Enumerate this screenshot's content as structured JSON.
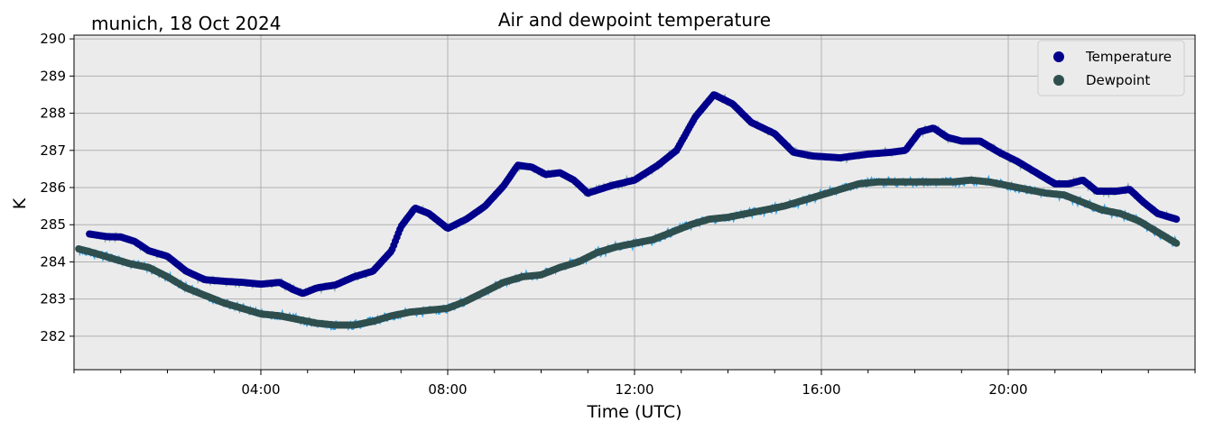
{
  "chart_data": {
    "type": "scatter",
    "title": "Air and dewpoint temperature",
    "subtitle": "munich, 18 Oct 2024",
    "xlabel": "Time (UTC)",
    "ylabel": "K",
    "xlim": [
      0,
      24
    ],
    "ylim": [
      281.1,
      290.1
    ],
    "x_ticks": [
      {
        "value": 4,
        "label": "04:00"
      },
      {
        "value": 8,
        "label": "08:00"
      },
      {
        "value": 12,
        "label": "12:00"
      },
      {
        "value": 16,
        "label": "16:00"
      },
      {
        "value": 20,
        "label": "20:00"
      }
    ],
    "y_ticks": [
      {
        "value": 282,
        "label": "282"
      },
      {
        "value": 283,
        "label": "283"
      },
      {
        "value": 284,
        "label": "284"
      },
      {
        "value": 285,
        "label": "285"
      },
      {
        "value": 286,
        "label": "286"
      },
      {
        "value": 287,
        "label": "287"
      },
      {
        "value": 288,
        "label": "288"
      },
      {
        "value": 289,
        "label": "289"
      },
      {
        "value": 290,
        "label": "290"
      }
    ],
    "grid": true,
    "legend_position": "top-right",
    "colors": {
      "background": "#ebebeb",
      "grid": "#b0b0b0",
      "temperature": "#00008b",
      "temperature_raw": "#7fa9a3",
      "dewpoint": "#2f4f4f",
      "dewpoint_raw": "#1e9ff0"
    },
    "series": [
      {
        "name": "Temperature",
        "x": [
          0.33,
          0.7,
          1.0,
          1.3,
          1.6,
          2.0,
          2.4,
          2.8,
          3.2,
          3.6,
          4.0,
          4.4,
          4.7,
          4.9,
          5.2,
          5.6,
          6.0,
          6.4,
          6.8,
          7.0,
          7.3,
          7.6,
          8.0,
          8.4,
          8.8,
          9.2,
          9.5,
          9.8,
          10.1,
          10.4,
          10.7,
          11.0,
          11.5,
          12.0,
          12.5,
          12.9,
          13.3,
          13.7,
          14.1,
          14.5,
          15.0,
          15.4,
          15.8,
          16.4,
          17.0,
          17.5,
          17.8,
          18.1,
          18.4,
          18.7,
          19.0,
          19.4,
          19.8,
          20.2,
          20.6,
          21.0,
          21.3,
          21.6,
          21.9,
          22.3,
          22.6,
          22.9,
          23.2,
          23.6
        ],
        "y": [
          284.75,
          284.68,
          284.67,
          284.55,
          284.3,
          284.15,
          283.75,
          283.52,
          283.48,
          283.45,
          283.4,
          283.45,
          283.25,
          283.15,
          283.3,
          283.38,
          283.6,
          283.75,
          284.3,
          284.95,
          285.45,
          285.3,
          284.9,
          285.15,
          285.5,
          286.05,
          286.6,
          286.55,
          286.35,
          286.4,
          286.2,
          285.85,
          286.05,
          286.2,
          286.6,
          287.0,
          287.9,
          288.5,
          288.25,
          287.75,
          287.45,
          286.95,
          286.85,
          286.8,
          286.9,
          286.95,
          287.0,
          287.5,
          287.6,
          287.35,
          287.25,
          287.25,
          286.95,
          286.7,
          286.4,
          286.1,
          286.1,
          286.2,
          285.9,
          285.9,
          285.95,
          285.6,
          285.3,
          285.15
        ]
      },
      {
        "name": "Dewpoint",
        "x": [
          0.1,
          0.4,
          0.8,
          1.2,
          1.6,
          2.0,
          2.4,
          2.8,
          3.2,
          3.6,
          4.0,
          4.4,
          4.8,
          5.2,
          5.6,
          6.0,
          6.4,
          6.8,
          7.2,
          7.6,
          8.0,
          8.4,
          8.8,
          9.2,
          9.6,
          10.0,
          10.4,
          10.8,
          11.2,
          11.6,
          12.0,
          12.4,
          12.8,
          13.2,
          13.6,
          14.0,
          14.4,
          14.8,
          15.2,
          15.6,
          16.0,
          16.4,
          16.8,
          17.2,
          17.6,
          18.0,
          18.4,
          18.8,
          19.2,
          19.6,
          20.0,
          20.4,
          20.8,
          21.2,
          21.6,
          22.0,
          22.4,
          22.8,
          23.2,
          23.6
        ],
        "y": [
          284.35,
          284.25,
          284.1,
          283.95,
          283.85,
          283.6,
          283.3,
          283.1,
          282.9,
          282.75,
          282.6,
          282.55,
          282.45,
          282.35,
          282.3,
          282.3,
          282.4,
          282.55,
          282.65,
          282.7,
          282.75,
          282.95,
          283.2,
          283.45,
          283.6,
          283.65,
          283.85,
          284.0,
          284.25,
          284.4,
          284.5,
          284.6,
          284.8,
          285.0,
          285.15,
          285.2,
          285.3,
          285.4,
          285.5,
          285.65,
          285.8,
          285.95,
          286.1,
          286.15,
          286.15,
          286.15,
          286.15,
          286.15,
          286.2,
          286.15,
          286.05,
          285.95,
          285.85,
          285.8,
          285.6,
          285.4,
          285.3,
          285.1,
          284.8,
          284.5
        ]
      }
    ]
  }
}
